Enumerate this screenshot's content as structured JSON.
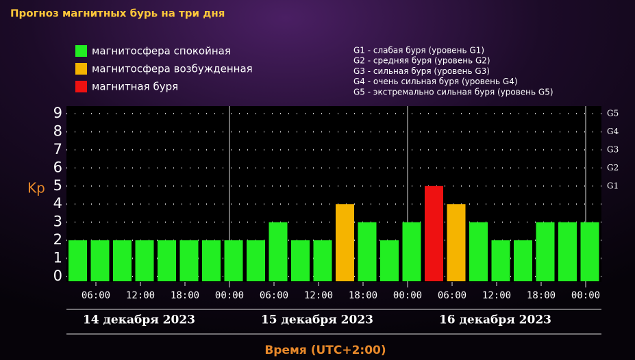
{
  "chart_data": {
    "type": "bar",
    "title": "Прогноз магнитных бурь на три дня",
    "ylabel": "Kp",
    "xlabel": "Время (UTC+2:00)",
    "categories": [
      null,
      null,
      null,
      null,
      null,
      null,
      null,
      null,
      null,
      null,
      null,
      null,
      null,
      null,
      null,
      null,
      null,
      null,
      null,
      null,
      null,
      null,
      null,
      null
    ],
    "series": [
      {
        "name": "магнитосфера спокойная",
        "color": "#22ee22",
        "values": [
          2,
          2,
          2,
          2,
          2,
          2,
          2,
          2,
          2,
          3,
          2,
          2,
          null,
          3,
          2,
          3,
          null,
          null,
          3,
          2,
          2,
          3,
          3,
          3
        ]
      },
      {
        "name": "магнитосфера возбужденная",
        "color": "#f5b400",
        "values": [
          null,
          null,
          null,
          null,
          null,
          null,
          null,
          null,
          null,
          null,
          null,
          null,
          4,
          null,
          null,
          null,
          null,
          4,
          null,
          null,
          null,
          null,
          null,
          null
        ]
      },
      {
        "name": "магнитная буря",
        "color": "#ee1111",
        "values": [
          null,
          null,
          null,
          null,
          null,
          null,
          null,
          null,
          null,
          null,
          null,
          null,
          null,
          null,
          null,
          null,
          5,
          null,
          null,
          null,
          null,
          null,
          null,
          null
        ]
      }
    ],
    "ylim": [
      0,
      9
    ],
    "yticks": [
      0,
      1,
      2,
      3,
      4,
      5,
      6,
      7,
      8,
      9
    ],
    "y2lim": [
      0,
      9
    ],
    "y2ticks": [
      {
        "value": 5,
        "label": "G1"
      },
      {
        "value": 6,
        "label": "G2"
      },
      {
        "value": 7,
        "label": "G3"
      },
      {
        "value": 8,
        "label": "G4"
      },
      {
        "value": 9,
        "label": "G5"
      }
    ],
    "grid": true,
    "time_labels": [
      "06:00",
      "12:00",
      "18:00",
      "00:00",
      "06:00",
      "12:00",
      "18:00",
      "00:00",
      "06:00",
      "12:00",
      "18:00",
      "00:00"
    ],
    "days": [
      "14 декабря 2023",
      "15 декабря 2023",
      "16 декабря 2023"
    ],
    "storm_levels": [
      "G1 - слабая буря (уровень G1)",
      "G2 - средняя буря (уровень G2)",
      "G3 - сильная буря (уровень G3)",
      "G4 - очень сильная буря (уровень G4)",
      "G5 - экстремально сильная буря (уровень G5)"
    ]
  }
}
